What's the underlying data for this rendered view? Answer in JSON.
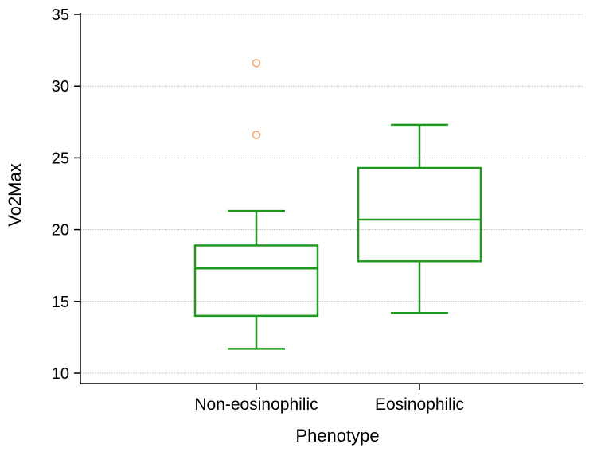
{
  "chart_data": {
    "type": "box",
    "title": "",
    "xlabel": "Phenotype",
    "ylabel": "Vo2Max",
    "ylim": [
      10,
      35
    ],
    "yticks": [
      "10",
      "15",
      "20",
      "25",
      "30",
      "35"
    ],
    "grid": true,
    "categories": [
      "Non-eosinophilic",
      "Eosinophilic"
    ],
    "boxes": [
      {
        "name": "Non-eosinophilic",
        "whisker_low": 11.7,
        "q1": 14.0,
        "median": 17.3,
        "q3": 18.9,
        "whisker_high": 21.3,
        "outliers": [
          26.6,
          31.6
        ]
      },
      {
        "name": "Eosinophilic",
        "whisker_low": 14.2,
        "q1": 17.8,
        "median": 20.7,
        "q3": 24.3,
        "whisker_high": 27.3,
        "outliers": []
      }
    ],
    "colors": {
      "box": "#1f9a1f",
      "outlier": "#f2a36b",
      "grid": "#c8c8c8",
      "axis": "#000000"
    }
  }
}
